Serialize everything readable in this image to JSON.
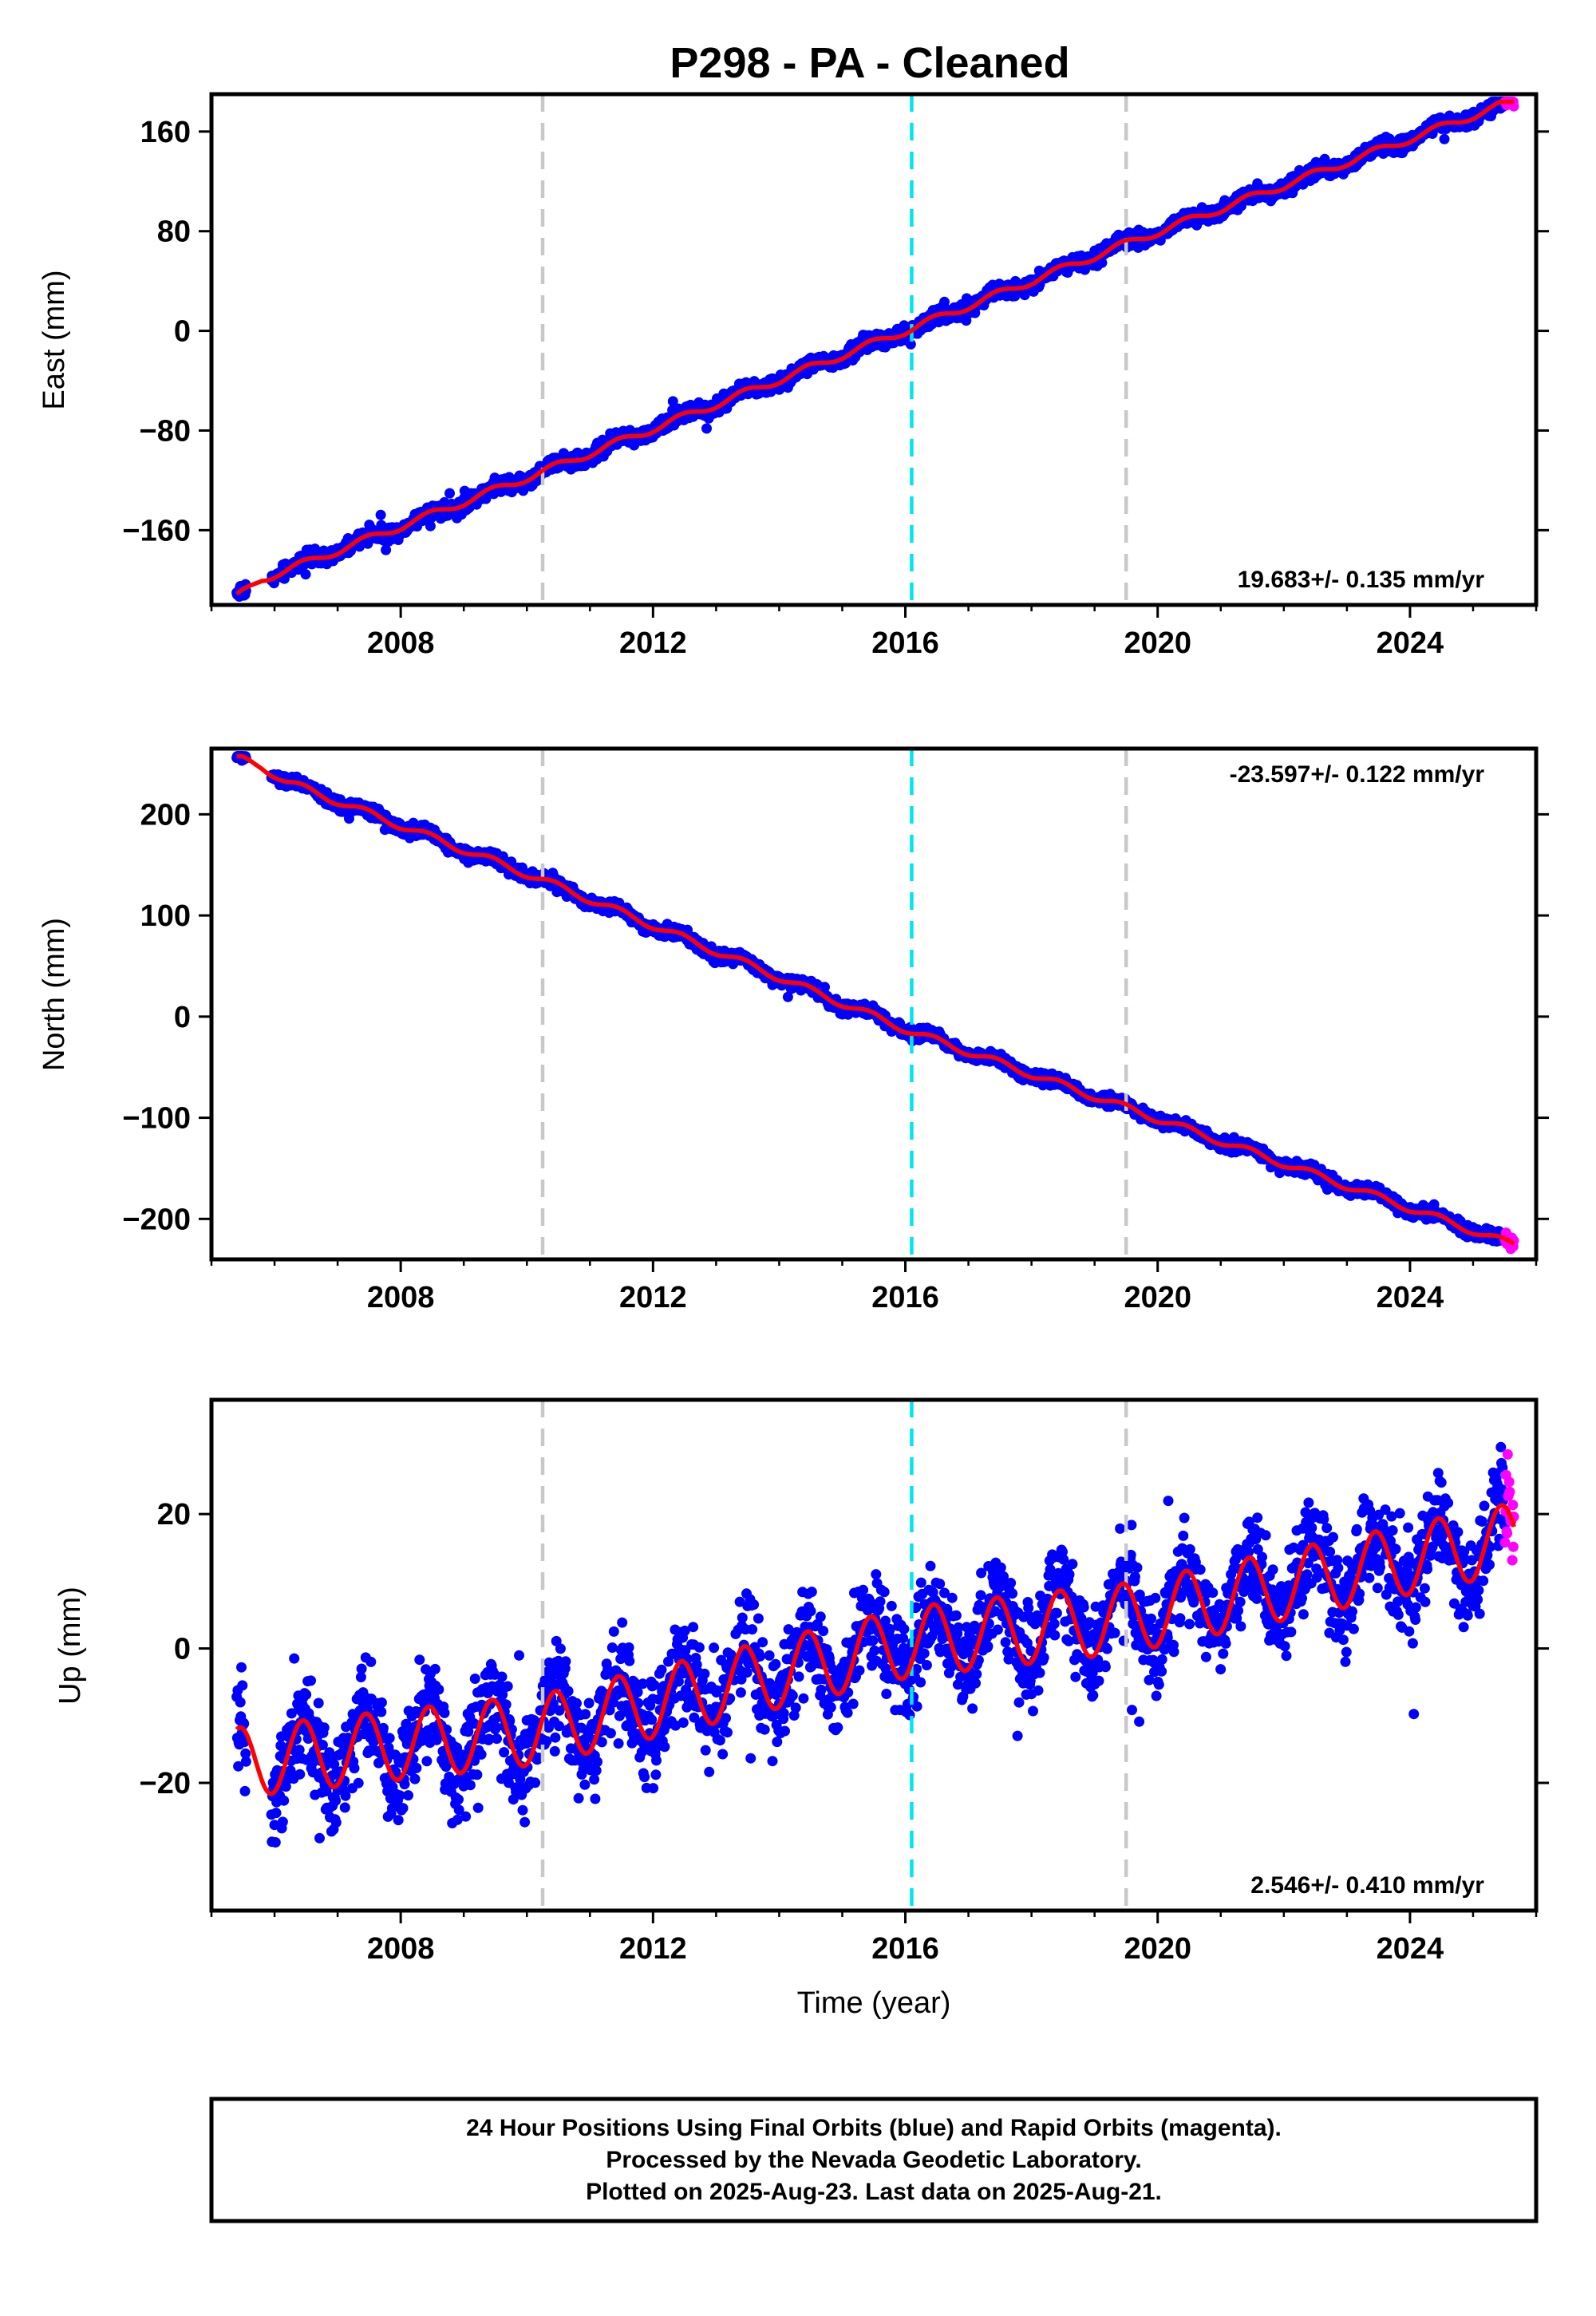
{
  "title": "P298  - PA - Cleaned",
  "colors": {
    "final": "#0000ff",
    "rapid": "#ff00ff",
    "model": "#ff0000",
    "event_gray": "#c8c8c8",
    "event_cyan": "#00e5ee"
  },
  "chart_data": [
    {
      "type": "scatter",
      "name": "east",
      "ylabel": "East (mm)",
      "xlabel": "",
      "xlim": [
        2005.0,
        2026.0
      ],
      "ylim": [
        -220,
        190
      ],
      "xticks": [
        2008,
        2012,
        2016,
        2020,
        2024
      ],
      "yticks": [
        -160,
        -80,
        0,
        80,
        160
      ],
      "rate_label": "19.683+/- 0.135 mm/yr",
      "event_lines": [
        {
          "x": 2010.25,
          "style": "gray"
        },
        {
          "x": 2016.1,
          "style": "cyan"
        },
        {
          "x": 2019.5,
          "style": "gray"
        }
      ],
      "data_start": 2005.4,
      "data_end": 2025.65,
      "rapid_start": 2025.5,
      "model_points": [
        [
          2005.4,
          -214
        ],
        [
          2005.8,
          -199
        ],
        [
          2006.2,
          -192
        ],
        [
          2010.25,
          -113
        ],
        [
          2016.1,
          2
        ],
        [
          2019.5,
          70
        ],
        [
          2025.65,
          185
        ]
      ],
      "seasonal_amplitude": 3,
      "noise": 3
    },
    {
      "type": "scatter",
      "name": "north",
      "ylabel": "North (mm)",
      "xlabel": "",
      "xlim": [
        2005.0,
        2026.0
      ],
      "ylim": [
        -240,
        265
      ],
      "xticks": [
        2008,
        2012,
        2016,
        2020,
        2024
      ],
      "yticks": [
        -200,
        -100,
        0,
        100,
        200
      ],
      "rate_label": "-23.597+/- 0.122 mm/yr",
      "event_lines": [
        {
          "x": 2010.25,
          "style": "gray"
        },
        {
          "x": 2016.1,
          "style": "cyan"
        },
        {
          "x": 2019.5,
          "style": "gray"
        }
      ],
      "data_start": 2005.4,
      "data_end": 2025.65,
      "rapid_start": 2025.5,
      "model_points": [
        [
          2005.4,
          256
        ],
        [
          2005.8,
          247
        ],
        [
          2006.2,
          232
        ],
        [
          2010.25,
          135
        ],
        [
          2016.1,
          -15
        ],
        [
          2019.5,
          -90
        ],
        [
          2025.65,
          -226
        ]
      ],
      "seasonal_amplitude": 3.5,
      "noise": 3
    },
    {
      "type": "scatter",
      "name": "up",
      "ylabel": "Up (mm)",
      "xlabel": "Time (year)",
      "xlim": [
        2005.0,
        2026.0
      ],
      "ylim": [
        -39,
        37
      ],
      "xticks": [
        2008,
        2012,
        2016,
        2020,
        2024
      ],
      "yticks": [
        -20,
        0,
        20
      ],
      "rate_label": "2.546+/- 0.410 mm/yr",
      "event_lines": [
        {
          "x": 2010.25,
          "style": "gray"
        },
        {
          "x": 2016.1,
          "style": "cyan"
        },
        {
          "x": 2019.5,
          "style": "gray"
        }
      ],
      "data_start": 2005.4,
      "data_end": 2025.65,
      "rapid_start": 2025.5,
      "model_points": [
        [
          2005.4,
          -17
        ],
        [
          2010.25,
          -12
        ],
        [
          2016.1,
          1
        ],
        [
          2019.5,
          4.5
        ],
        [
          2025.65,
          16.5
        ]
      ],
      "seasonal_amplitude": 5.2,
      "noise": 3.6
    }
  ],
  "footer": {
    "line1": "24 Hour Positions Using Final Orbits (blue) and Rapid Orbits (magenta).",
    "line2": "Processed by the Nevada Geodetic Laboratory.",
    "line3": "Plotted on 2025-Aug-23. Last data on 2025-Aug-21."
  }
}
